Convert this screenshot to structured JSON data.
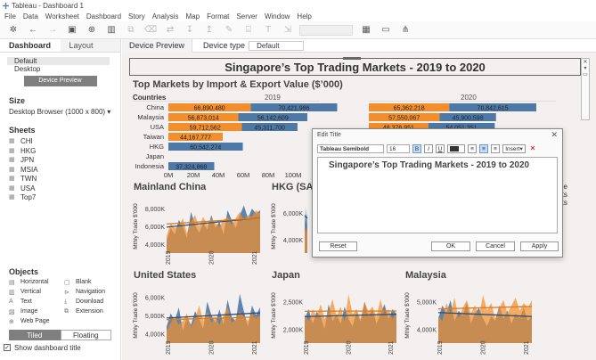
{
  "window": {
    "title": "Tableau - Dashboard 1"
  },
  "menu": [
    "File",
    "Data",
    "Worksheet",
    "Dashboard",
    "Story",
    "Analysis",
    "Map",
    "Format",
    "Server",
    "Window",
    "Help"
  ],
  "left_pane": {
    "tabs": [
      "Dashboard",
      "Layout"
    ],
    "device_items": [
      "Default",
      "Desktop"
    ],
    "device_preview_button": "Device Preview",
    "size_heading": "Size",
    "size_value": "Desktop Browser (1000 x 800) ▾",
    "sheets_heading": "Sheets",
    "sheets": [
      "CHI",
      "HKG",
      "JPN",
      "MSIA",
      "TWN",
      "USA",
      "Top7"
    ],
    "objects_heading": "Objects",
    "objects": [
      {
        "label": "Horizontal",
        "icon": "horizontal-icon"
      },
      {
        "label": "Blank",
        "icon": "blank-icon"
      },
      {
        "label": "Vertical",
        "icon": "vertical-icon"
      },
      {
        "label": "Navigation",
        "icon": "navigation-icon"
      },
      {
        "label": "Text",
        "icon": "text-icon"
      },
      {
        "label": "Download",
        "icon": "download-icon"
      },
      {
        "label": "Image",
        "icon": "image-icon"
      },
      {
        "label": "Extension",
        "icon": "extension-icon"
      },
      {
        "label": "Web Page",
        "icon": "web-page-icon"
      }
    ],
    "tiled_label": "Tiled",
    "floating_label": "Floating",
    "show_title_label": "Show dashboard title"
  },
  "device_bar": {
    "preview_label": "Device Preview",
    "type_label": "Device type",
    "type_value": "Default"
  },
  "dashboard": {
    "title": "Singapore’s Top Trading Markets - 2019 to 2020",
    "bar_chart_title": "Top Markets by Import & Export Value ($’000)",
    "countries_header": "Countries",
    "year_2019": "2019",
    "year_2020": "2020",
    "mini_titles": [
      "Mainland China",
      "HKG (SA",
      "United States",
      "Japan",
      "Malaysia"
    ],
    "mini_ylabel": "Mthly Trade $'000",
    "side_text": [
      "pe",
      "rts",
      "rts"
    ]
  },
  "dialog": {
    "title": "Edit Title",
    "font": "Tableau Semibold",
    "size": "16",
    "insert": "Insert▾",
    "text": "Singapore’s Top Trading Markets - 2019 to 2020",
    "reset": "Reset",
    "ok": "OK",
    "cancel": "Cancel",
    "apply": "Apply"
  },
  "colors": {
    "import": "#f28e2b",
    "export": "#4e79a7",
    "accent": "#5b7fa6"
  },
  "chart_data": [
    {
      "type": "bar",
      "title": "Top Markets by Import & Export Value ($’000)",
      "ylabel": "Countries",
      "categories": [
        "China",
        "Malaysia",
        "USA",
        "Taiwan",
        "HKG",
        "Japan",
        "Indonesia"
      ],
      "x_ticks": [
        "0M",
        "20M",
        "40M",
        "60M",
        "80M",
        "100M"
      ],
      "panels": [
        {
          "year": "2019",
          "series": [
            {
              "values": [
                66890480,
                56873014,
                59712562,
                44167777,
                0,
                0,
                0
              ],
              "labels": [
                "66,890,480",
                "56,873,014",
                "59,712,562",
                "44,167,777",
                "",
                "",
                ""
              ]
            },
            {
              "values": [
                70421986,
                56142609,
                45311700,
                0,
                60542274,
                0,
                37324868
              ],
              "labels": [
                "70,421,986",
                "56,142,609",
                "45,311,700",
                "",
                "60,542,274",
                "",
                "37,324,868"
              ]
            }
          ]
        },
        {
          "year": "2020",
          "series": [
            {
              "values": [
                65362218,
                57550067,
                48376951,
                0,
                0,
                0,
                0
              ],
              "labels": [
                "65,362,218",
                "57,550,067",
                "48,376,951",
                "",
                "",
                "",
                ""
              ]
            },
            {
              "values": [
                70842615,
                45900598,
                54051351,
                0,
                0,
                0,
                0
              ],
              "labels": [
                "70,842,615",
                "45,900,598",
                "54,051,351",
                "",
                "",
                "",
                ""
              ]
            }
          ]
        }
      ]
    },
    {
      "type": "area",
      "title": "Mainland China",
      "ylabel": "Mthly Trade $'000",
      "y_ticks": [
        "4,000K",
        "6,000K",
        "8,000K"
      ],
      "x_ticks": [
        "2019",
        "2020",
        "2021"
      ],
      "series": [
        {
          "values": [
            5000,
            5800,
            5400,
            6300,
            5900,
            5200,
            6800,
            6000,
            5500,
            6100,
            5700,
            6600,
            5800,
            6200,
            5400,
            6900,
            6300,
            5800,
            6600,
            7200,
            6400,
            7000,
            6700,
            6900
          ]
        },
        {
          "values": [
            5300,
            6100,
            5800,
            5900,
            6400,
            5500,
            6200,
            6600,
            5900,
            6500,
            6000,
            6400,
            6100,
            5900,
            6300,
            6500,
            6000,
            6400,
            6800,
            6300,
            6600,
            6500,
            6900,
            6700
          ]
        }
      ]
    },
    {
      "type": "area",
      "title": "HKG (SA",
      "ylabel": "Mthly Trade $'000",
      "y_ticks": [
        "4,000K",
        "6,000K"
      ],
      "x_ticks": [],
      "series": [
        {
          "values": [
            5200,
            5600,
            5100,
            5800,
            5400,
            5000,
            5700,
            5300,
            5500,
            5000
          ]
        },
        {
          "values": [
            4600,
            5000,
            4700,
            4900,
            4800,
            4500,
            5100,
            4700,
            4900,
            4600
          ]
        }
      ]
    },
    {
      "type": "area",
      "title": "United States",
      "ylabel": "Mthly Trade $'000",
      "y_ticks": [
        "4,000K",
        "5,000K",
        "6,000K"
      ],
      "x_ticks": [
        "2019",
        "2020",
        "2021"
      ],
      "series": [
        {
          "values": [
            4500,
            5200,
            4800,
            5500,
            4300,
            5000,
            4600,
            5300,
            4900,
            4400,
            5800,
            5100,
            4700,
            5400,
            4600,
            5900,
            5000,
            4800,
            6200,
            5300,
            4500,
            5600,
            5100,
            5500
          ]
        },
        {
          "values": [
            4300,
            4700,
            5000,
            4600,
            4800,
            5200,
            4500,
            4900,
            5600,
            4800,
            5300,
            4700,
            5000,
            4600,
            5100,
            5500,
            4700,
            4900,
            5300,
            5000,
            4800,
            5200,
            4900,
            5100
          ]
        }
      ]
    },
    {
      "type": "area",
      "title": "Japan",
      "ylabel": "Mthly Trade $'000",
      "y_ticks": [
        "2,000K",
        "2,500K"
      ],
      "x_ticks": [
        "2019",
        "2020",
        "2021"
      ],
      "series": [
        {
          "values": [
            2100,
            2300,
            2000,
            2250,
            2150,
            1900,
            2400,
            2050,
            2200,
            2000,
            2350,
            2100,
            1950,
            2250,
            2050,
            2450,
            2150,
            2300,
            2000,
            2200,
            2400,
            2100,
            2300,
            2200
          ]
        },
        {
          "values": [
            2200,
            2050,
            2300,
            2150,
            2400,
            2100,
            2250,
            2500,
            2150,
            2350,
            2050,
            2600,
            2200,
            2300,
            2100,
            2450,
            2250,
            2350,
            2150,
            2500,
            2200,
            2300,
            2100,
            2250
          ]
        }
      ]
    },
    {
      "type": "area",
      "title": "Malaysia",
      "ylabel": "Mthly Trade $'000",
      "y_ticks": [
        "4,000K",
        "5,000K"
      ],
      "x_ticks": [
        "2019",
        "2020",
        "2021"
      ],
      "series": [
        {
          "values": [
            4600,
            5100,
            4800,
            5300,
            4500,
            4900,
            4700,
            5200,
            4400,
            4800,
            5000,
            4600,
            4300,
            4700,
            4500,
            5100,
            4600,
            4900,
            4400,
            4800,
            4600,
            5000,
            4500,
            4700
          ]
        },
        {
          "values": [
            4700,
            4500,
            5200,
            4800,
            5400,
            4600,
            5000,
            5300,
            4800,
            5100,
            4700,
            5500,
            4900,
            5200,
            4600,
            5000,
            5300,
            4800,
            5100,
            5400,
            4900,
            5200,
            5000,
            5300
          ]
        }
      ]
    }
  ]
}
